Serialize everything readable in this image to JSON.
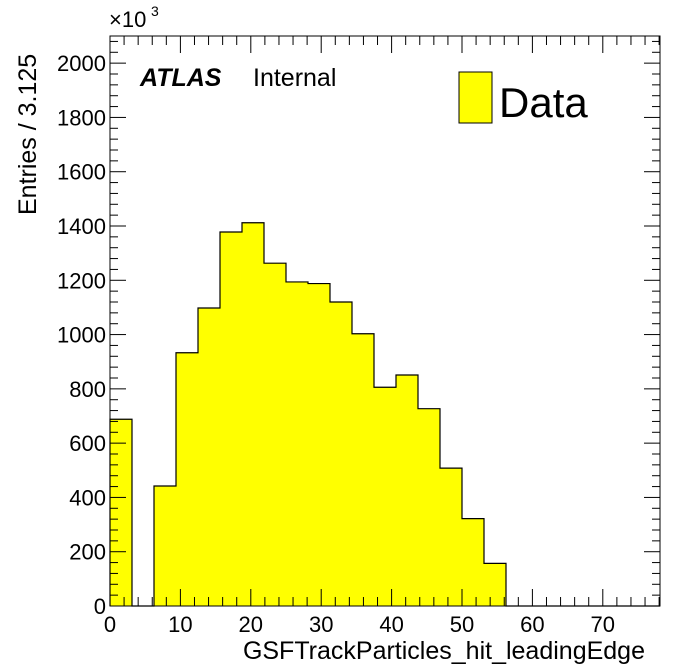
{
  "chart_data": {
    "type": "bar",
    "histogram": true,
    "x_bin_width": 3.125,
    "bin_edges": [
      0,
      3.125,
      6.25,
      9.375,
      12.5,
      15.625,
      18.75,
      21.875,
      25,
      28.125,
      31.25,
      34.375,
      37.5,
      40.625,
      43.75,
      46.875,
      50,
      53.125,
      56.25,
      59.375,
      62.5,
      65.625,
      68.75,
      71.875,
      75,
      78.125
    ],
    "values": [
      688,
      0,
      442,
      933,
      1098,
      1378,
      1412,
      1263,
      1194,
      1188,
      1120,
      1003,
      806,
      851,
      727,
      508,
      322,
      157,
      0,
      0,
      0,
      0,
      0,
      0,
      0
    ],
    "xlim": [
      0,
      78.125
    ],
    "ylim": [
      0,
      2100
    ],
    "x_ticks": [
      0,
      10,
      20,
      30,
      40,
      50,
      60,
      70
    ],
    "x_tick_labels": [
      "0",
      "10",
      "20",
      "30",
      "40",
      "50",
      "60",
      "70"
    ],
    "y_ticks": [
      0,
      200,
      400,
      600,
      800,
      1000,
      1200,
      1400,
      1600,
      1800,
      2000
    ],
    "y_tick_labels": [
      "0",
      "200",
      "400",
      "600",
      "800",
      "1000",
      "1200",
      "1400",
      "1600",
      "1800",
      "2000"
    ],
    "xlabel": "GSFTrackParticles_hit_leadingEdge",
    "ylabel": "Entries / 3.125",
    "y_multiplier": "×10",
    "y_multiplier_exp": "3",
    "annotation_bold": "ATLAS",
    "annotation_text": "Internal",
    "legend": [
      {
        "name": "Data",
        "color": "#ffff00"
      }
    ],
    "legend_position": "top-right",
    "fill_color": "#ffff00",
    "line_color": "#000000",
    "grid": false
  }
}
